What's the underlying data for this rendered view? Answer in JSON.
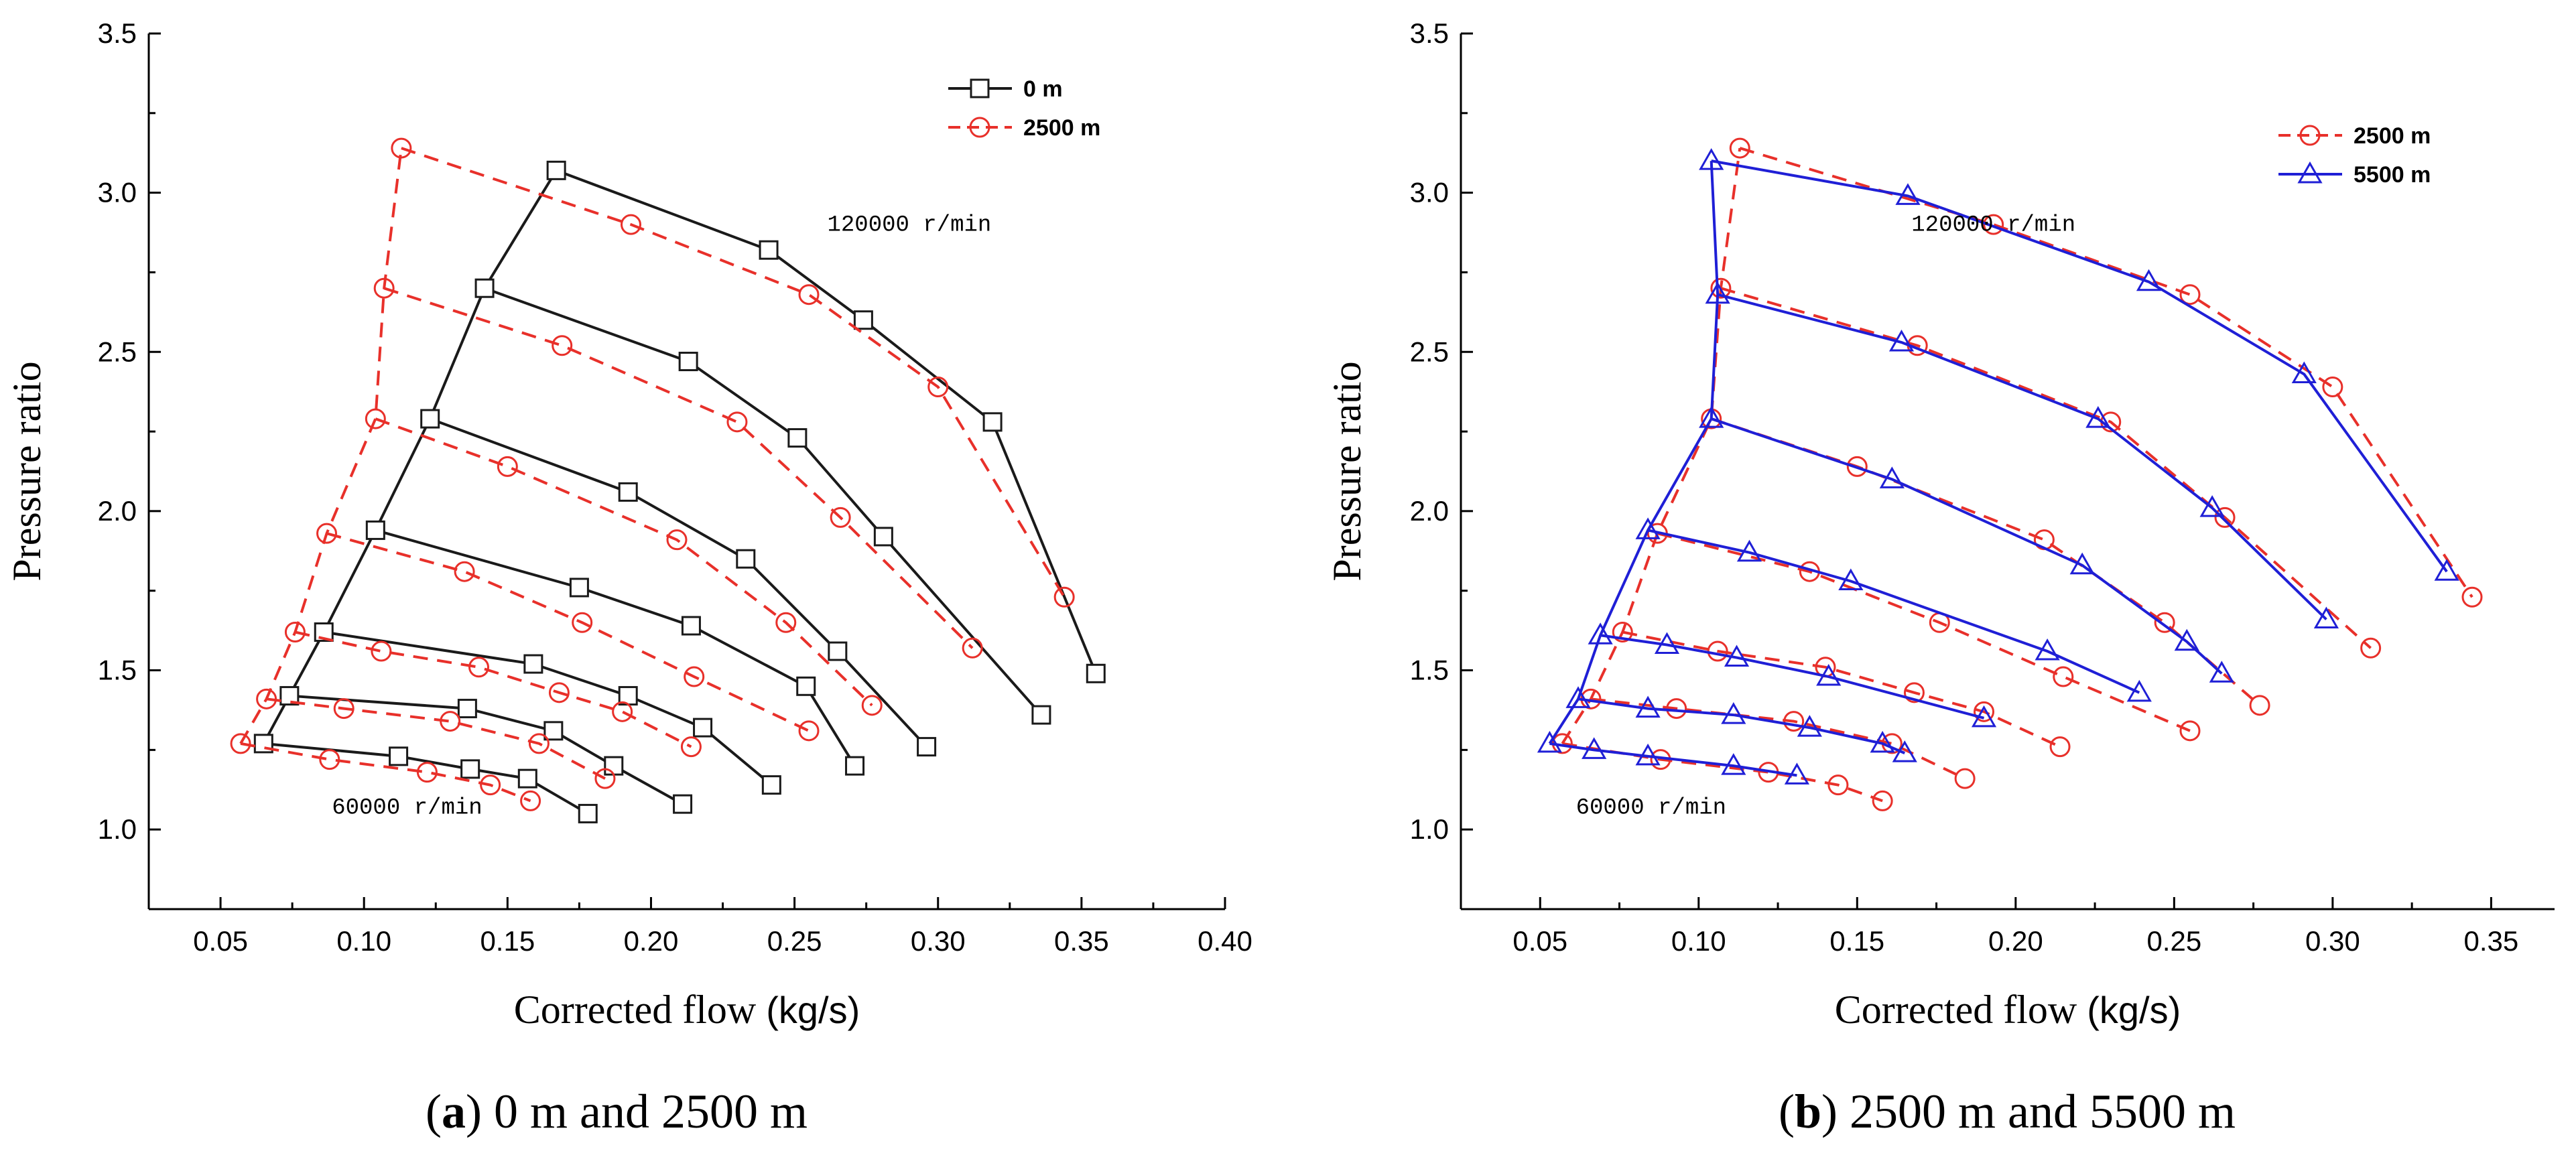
{
  "chart_data": [
    {
      "type": "line",
      "panel": "a",
      "caption_letter": "a",
      "caption_text": " 0 m and 2500 m",
      "xlabel": "Corrected flow",
      "xlabel_unit": "(kg/s)",
      "ylabel": "Pressure ratio",
      "xlim": [
        0.025,
        0.4
      ],
      "ylim": [
        0.75,
        3.5
      ],
      "xticks": [
        0.05,
        0.1,
        0.15,
        0.2,
        0.25,
        0.3,
        0.35,
        0.4
      ],
      "xtick_labels": [
        "0.05",
        "0.10",
        "0.15",
        "0.20",
        "0.25",
        "0.30",
        "0.35",
        "0.40"
      ],
      "yticks": [
        1.0,
        1.5,
        2.0,
        2.5,
        3.0,
        3.5
      ],
      "ytick_labels": [
        "1.0",
        "1.5",
        "2.0",
        "2.5",
        "3.0",
        "3.5"
      ],
      "annotations": [
        {
          "text": "120000 r/min",
          "x": 0.29,
          "y": 2.88
        },
        {
          "text": "60000 r/min",
          "x": 0.115,
          "y": 1.05
        }
      ],
      "legend": [
        {
          "label": "0 m",
          "color": "#1a1a1a",
          "dash": "solid",
          "marker": "square"
        },
        {
          "label": "2500 m",
          "color": "#e8302a",
          "dash": "dashed",
          "marker": "circle"
        }
      ],
      "series": [
        {
          "name": "0 m",
          "color": "#1a1a1a",
          "dash": "solid",
          "marker": "square",
          "lines": [
            [
              [
                0.065,
                1.27
              ],
              [
                0.112,
                1.23
              ],
              [
                0.137,
                1.19
              ],
              [
                0.157,
                1.16
              ],
              [
                0.178,
                1.05
              ]
            ],
            [
              [
                0.074,
                1.42
              ],
              [
                0.136,
                1.38
              ],
              [
                0.166,
                1.31
              ],
              [
                0.187,
                1.2
              ],
              [
                0.211,
                1.08
              ]
            ],
            [
              [
                0.086,
                1.62
              ],
              [
                0.159,
                1.52
              ],
              [
                0.192,
                1.42
              ],
              [
                0.218,
                1.32
              ],
              [
                0.242,
                1.14
              ]
            ],
            [
              [
                0.104,
                1.94
              ],
              [
                0.175,
                1.76
              ],
              [
                0.214,
                1.64
              ],
              [
                0.254,
                1.45
              ],
              [
                0.271,
                1.2
              ]
            ],
            [
              [
                0.123,
                2.29
              ],
              [
                0.192,
                2.06
              ],
              [
                0.233,
                1.85
              ],
              [
                0.265,
                1.56
              ],
              [
                0.296,
                1.26
              ]
            ],
            [
              [
                0.142,
                2.7
              ],
              [
                0.213,
                2.47
              ],
              [
                0.251,
                2.23
              ],
              [
                0.281,
                1.92
              ],
              [
                0.336,
                1.36
              ]
            ],
            [
              [
                0.167,
                3.07
              ],
              [
                0.241,
                2.82
              ],
              [
                0.274,
                2.6
              ],
              [
                0.319,
                2.28
              ],
              [
                0.355,
                1.49
              ]
            ]
          ],
          "surge": [
            [
              0.065,
              1.27
            ],
            [
              0.074,
              1.42
            ],
            [
              0.086,
              1.62
            ],
            [
              0.104,
              1.94
            ],
            [
              0.123,
              2.29
            ],
            [
              0.142,
              2.7
            ],
            [
              0.167,
              3.07
            ]
          ]
        },
        {
          "name": "2500 m",
          "color": "#e8302a",
          "dash": "dashed",
          "marker": "circle",
          "lines": [
            [
              [
                0.057,
                1.27
              ],
              [
                0.088,
                1.22
              ],
              [
                0.122,
                1.18
              ],
              [
                0.144,
                1.14
              ],
              [
                0.158,
                1.09
              ]
            ],
            [
              [
                0.066,
                1.41
              ],
              [
                0.093,
                1.38
              ],
              [
                0.13,
                1.34
              ],
              [
                0.161,
                1.27
              ],
              [
                0.184,
                1.16
              ]
            ],
            [
              [
                0.076,
                1.62
              ],
              [
                0.106,
                1.56
              ],
              [
                0.14,
                1.51
              ],
              [
                0.168,
                1.43
              ],
              [
                0.19,
                1.37
              ],
              [
                0.214,
                1.26
              ]
            ],
            [
              [
                0.087,
                1.93
              ],
              [
                0.135,
                1.81
              ],
              [
                0.176,
                1.65
              ],
              [
                0.215,
                1.48
              ],
              [
                0.255,
                1.31
              ]
            ],
            [
              [
                0.104,
                2.29
              ],
              [
                0.15,
                2.14
              ],
              [
                0.209,
                1.91
              ],
              [
                0.247,
                1.65
              ],
              [
                0.277,
                1.39
              ]
            ],
            [
              [
                0.107,
                2.7
              ],
              [
                0.169,
                2.52
              ],
              [
                0.23,
                2.28
              ],
              [
                0.266,
                1.98
              ],
              [
                0.312,
                1.57
              ]
            ],
            [
              [
                0.113,
                3.14
              ],
              [
                0.193,
                2.9
              ],
              [
                0.255,
                2.68
              ],
              [
                0.3,
                2.39
              ],
              [
                0.344,
                1.73
              ]
            ]
          ],
          "surge": [
            [
              0.057,
              1.27
            ],
            [
              0.066,
              1.41
            ],
            [
              0.076,
              1.62
            ],
            [
              0.087,
              1.93
            ],
            [
              0.104,
              2.29
            ],
            [
              0.107,
              2.7
            ],
            [
              0.113,
              3.14
            ]
          ]
        }
      ]
    },
    {
      "type": "line",
      "panel": "b",
      "caption_letter": "b",
      "caption_text": " 2500 m and 5500 m",
      "xlabel": "Corrected flow",
      "xlabel_unit": "(kg/s)",
      "ylabel": "Pressure ratio",
      "xlim": [
        0.025,
        0.37
      ],
      "ylim": [
        0.75,
        3.5
      ],
      "xticks": [
        0.05,
        0.1,
        0.15,
        0.2,
        0.25,
        0.3,
        0.35
      ],
      "xtick_labels": [
        "0.05",
        "0.10",
        "0.15",
        "0.20",
        "0.25",
        "0.30",
        "0.35"
      ],
      "yticks": [
        1.0,
        1.5,
        2.0,
        2.5,
        3.0,
        3.5
      ],
      "ytick_labels": [
        "1.0",
        "1.5",
        "2.0",
        "2.5",
        "3.0",
        "3.5"
      ],
      "annotations": [
        {
          "text": "120000 r/min",
          "x": 0.193,
          "y": 2.88
        },
        {
          "text": "60000 r/min",
          "x": 0.085,
          "y": 1.05
        }
      ],
      "legend": [
        {
          "label": "2500 m",
          "color": "#e8302a",
          "dash": "dashed",
          "marker": "circle"
        },
        {
          "label": "5500 m",
          "color": "#1f1fd6",
          "dash": "solid",
          "marker": "triangle"
        }
      ],
      "series": [
        {
          "name": "2500 m",
          "color": "#e8302a",
          "dash": "dashed",
          "marker": "circle",
          "lines": [
            [
              [
                0.057,
                1.27
              ],
              [
                0.088,
                1.22
              ],
              [
                0.122,
                1.18
              ],
              [
                0.144,
                1.14
              ],
              [
                0.158,
                1.09
              ]
            ],
            [
              [
                0.066,
                1.41
              ],
              [
                0.093,
                1.38
              ],
              [
                0.13,
                1.34
              ],
              [
                0.161,
                1.27
              ],
              [
                0.184,
                1.16
              ]
            ],
            [
              [
                0.076,
                1.62
              ],
              [
                0.106,
                1.56
              ],
              [
                0.14,
                1.51
              ],
              [
                0.168,
                1.43
              ],
              [
                0.19,
                1.37
              ],
              [
                0.214,
                1.26
              ]
            ],
            [
              [
                0.087,
                1.93
              ],
              [
                0.135,
                1.81
              ],
              [
                0.176,
                1.65
              ],
              [
                0.215,
                1.48
              ],
              [
                0.255,
                1.31
              ]
            ],
            [
              [
                0.104,
                2.29
              ],
              [
                0.15,
                2.14
              ],
              [
                0.209,
                1.91
              ],
              [
                0.247,
                1.65
              ],
              [
                0.277,
                1.39
              ]
            ],
            [
              [
                0.107,
                2.7
              ],
              [
                0.169,
                2.52
              ],
              [
                0.23,
                2.28
              ],
              [
                0.266,
                1.98
              ],
              [
                0.312,
                1.57
              ]
            ],
            [
              [
                0.113,
                3.14
              ],
              [
                0.193,
                2.9
              ],
              [
                0.255,
                2.68
              ],
              [
                0.3,
                2.39
              ],
              [
                0.344,
                1.73
              ]
            ]
          ],
          "surge": [
            [
              0.057,
              1.27
            ],
            [
              0.066,
              1.41
            ],
            [
              0.076,
              1.62
            ],
            [
              0.087,
              1.93
            ],
            [
              0.104,
              2.29
            ],
            [
              0.107,
              2.7
            ],
            [
              0.113,
              3.14
            ]
          ]
        },
        {
          "name": "5500 m",
          "color": "#1f1fd6",
          "dash": "solid",
          "marker": "triangle",
          "lines": [
            [
              [
                0.053,
                1.27
              ],
              [
                0.067,
                1.25
              ],
              [
                0.084,
                1.23
              ],
              [
                0.111,
                1.2
              ],
              [
                0.131,
                1.17
              ]
            ],
            [
              [
                0.062,
                1.41
              ],
              [
                0.084,
                1.38
              ],
              [
                0.111,
                1.36
              ],
              [
                0.135,
                1.32
              ],
              [
                0.158,
                1.27
              ],
              [
                0.165,
                1.24
              ]
            ],
            [
              [
                0.069,
                1.61
              ],
              [
                0.09,
                1.58
              ],
              [
                0.112,
                1.54
              ],
              [
                0.141,
                1.48
              ],
              [
                0.19,
                1.35
              ]
            ],
            [
              [
                0.084,
                1.94
              ],
              [
                0.116,
                1.87
              ],
              [
                0.148,
                1.78
              ],
              [
                0.21,
                1.56
              ],
              [
                0.239,
                1.43
              ]
            ],
            [
              [
                0.104,
                2.29
              ],
              [
                0.161,
                2.1
              ],
              [
                0.221,
                1.83
              ],
              [
                0.254,
                1.59
              ],
              [
                0.265,
                1.49
              ]
            ],
            [
              [
                0.106,
                2.68
              ],
              [
                0.164,
                2.53
              ],
              [
                0.226,
                2.29
              ],
              [
                0.262,
                2.01
              ],
              [
                0.298,
                1.66
              ]
            ],
            [
              [
                0.104,
                3.1
              ],
              [
                0.166,
                2.99
              ],
              [
                0.242,
                2.72
              ],
              [
                0.291,
                2.43
              ],
              [
                0.336,
                1.81
              ]
            ]
          ],
          "surge": [
            [
              0.053,
              1.27
            ],
            [
              0.062,
              1.41
            ],
            [
              0.069,
              1.61
            ],
            [
              0.084,
              1.94
            ],
            [
              0.104,
              2.29
            ],
            [
              0.106,
              2.68
            ],
            [
              0.104,
              3.1
            ]
          ]
        }
      ]
    }
  ]
}
